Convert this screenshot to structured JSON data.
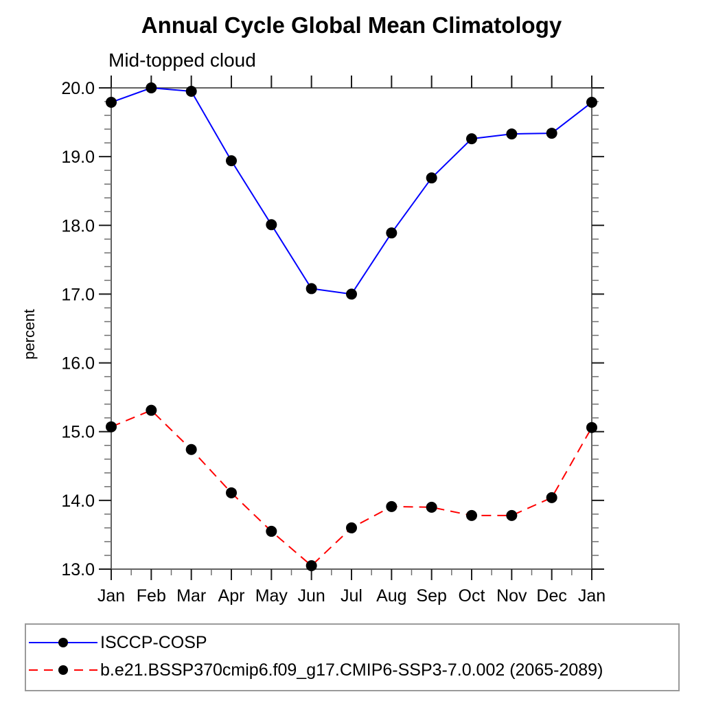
{
  "title": "Annual Cycle Global Mean Climatology",
  "subtitle": "Mid-topped cloud",
  "chart_data": {
    "type": "line",
    "title": "Annual Cycle Global Mean Climatology",
    "subtitle": "Mid-topped cloud",
    "xlabel": "",
    "ylabel": "percent",
    "categories": [
      "Jan",
      "Feb",
      "Mar",
      "Apr",
      "May",
      "Jun",
      "Jul",
      "Aug",
      "Sep",
      "Oct",
      "Nov",
      "Dec",
      "Jan"
    ],
    "ylim": [
      13.0,
      20.0
    ],
    "y_major_step": 1.0,
    "y_minor_step": 0.2,
    "y_tick_labels": [
      "13.0",
      "14.0",
      "15.0",
      "16.0",
      "17.0",
      "18.0",
      "19.0",
      "20.0"
    ],
    "grid": false,
    "legend_position": "bottom",
    "series": [
      {
        "name": "ISCCP-COSP",
        "color": "#0000ff",
        "line_style": "solid",
        "marker": "circle",
        "marker_color": "#000000",
        "values": [
          19.79,
          20.0,
          19.95,
          18.94,
          18.01,
          17.08,
          17.0,
          17.89,
          18.69,
          19.26,
          19.33,
          19.34,
          19.79
        ]
      },
      {
        "name": "b.e21.BSSP370cmip6.f09_g17.CMIP6-SSP3-7.0.002 (2065-2089)",
        "color": "#ff0000",
        "line_style": "dashed",
        "marker": "circle",
        "marker_color": "#000000",
        "values": [
          15.07,
          15.31,
          14.74,
          14.11,
          13.55,
          13.05,
          13.6,
          13.91,
          13.9,
          13.78,
          13.78,
          14.04,
          15.06
        ]
      }
    ]
  },
  "colors": {
    "axis_frame": "#606060",
    "major_tick": "#1a1a1a",
    "minor_tick": "#6e6e6e",
    "legend_border": "#9a9a9a",
    "text": "#000000"
  }
}
